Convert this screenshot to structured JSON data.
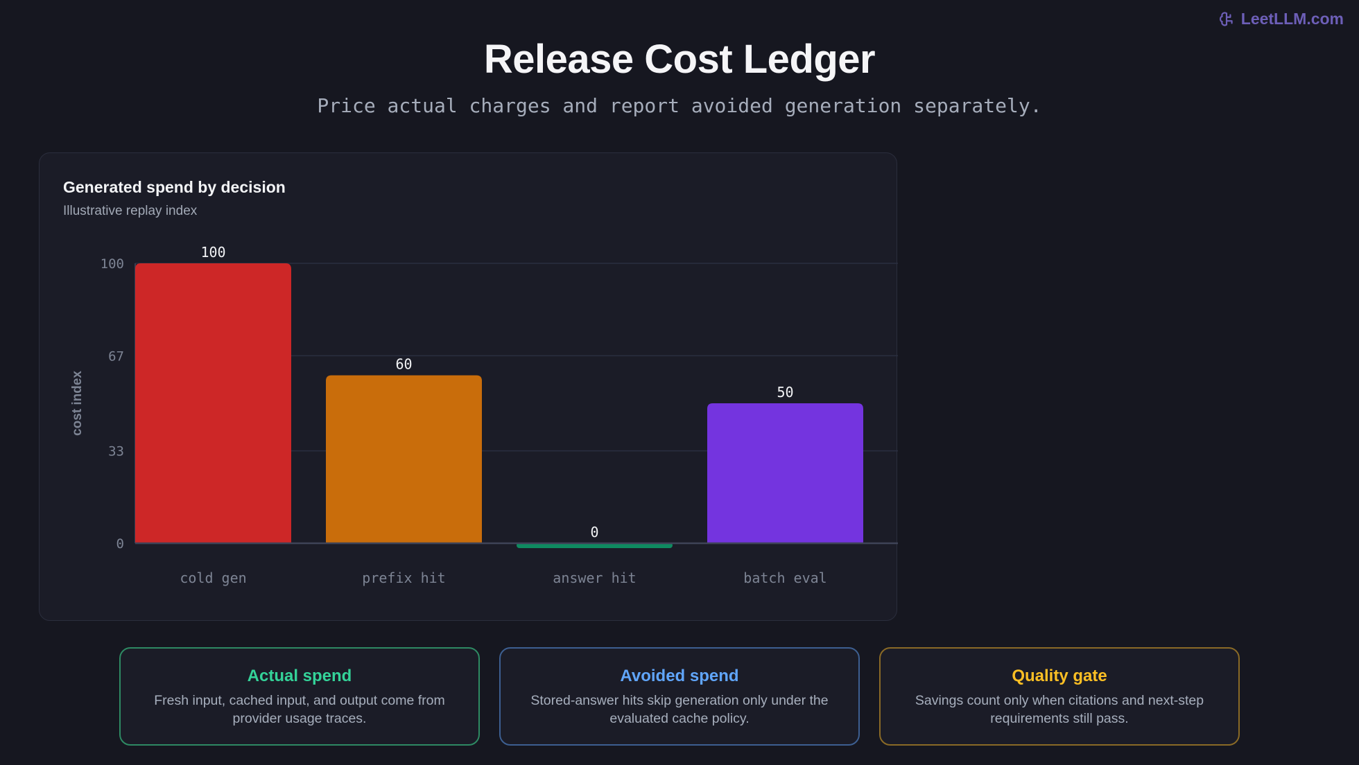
{
  "brand": {
    "name": "LeetLLM.com",
    "icon": "brain-icon"
  },
  "header": {
    "title": "Release Cost Ledger",
    "subtitle": "Price actual charges and report avoided generation separately."
  },
  "chart_data": {
    "type": "bar",
    "title": "Generated spend by decision",
    "subtitle": "Illustrative replay index",
    "xlabel": "",
    "ylabel": "cost index",
    "categories": [
      "cold gen",
      "prefix hit",
      "answer hit",
      "batch eval"
    ],
    "values": [
      100,
      60,
      0,
      50
    ],
    "value_labels": [
      "100",
      "60",
      "0",
      "50"
    ],
    "colors": [
      "#cd2727",
      "#c96d0b",
      "#0f8a60",
      "#7434df"
    ],
    "ylim": [
      0,
      100
    ],
    "yticks": [
      0,
      33,
      67,
      100
    ],
    "grid": true
  },
  "cards": [
    {
      "title": "Actual spend",
      "text": "Fresh input, cached input, and output come from provider usage traces.",
      "accent": "#34d399",
      "border": "#2e8a63"
    },
    {
      "title": "Avoided spend",
      "text": "Stored-answer hits skip generation only under the evaluated cache policy.",
      "accent": "#60a5fa",
      "border": "#3d5f91"
    },
    {
      "title": "Quality gate",
      "text": "Savings count only when citations and next-step requirements still pass.",
      "accent": "#fbbf24",
      "border": "#8a6a26"
    }
  ]
}
